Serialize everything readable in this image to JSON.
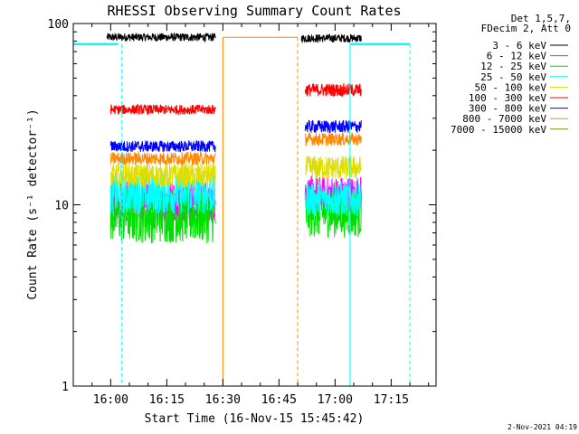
{
  "chart_data": {
    "type": "line",
    "title": "RHESSI Observing Summary Count Rates",
    "xlabel": "Start Time (16-Nov-15 15:45:42)",
    "ylabel": "Count Rate (s⁻¹ detector⁻¹)",
    "y_scale": "log",
    "ylim": [
      1,
      100
    ],
    "y_ticks": [
      1,
      10,
      100
    ],
    "y_tick_labels": [
      "1",
      "10",
      "100"
    ],
    "xlim": [
      "15:50",
      "17:27"
    ],
    "x_ticks": [
      "16:00",
      "16:15",
      "16:30",
      "16:45",
      "17:00",
      "17:15"
    ],
    "grid": false,
    "legend_position": "top-right",
    "legend_header": [
      "Det 1,5,7,",
      "FDecim 2, Att 0"
    ],
    "series": [
      {
        "name": "3 - 6 keV",
        "color": "#000000",
        "segments": [
          {
            "t0": "15:59",
            "t1": "16:28",
            "level": 84,
            "jitter": 0.05
          },
          {
            "t0": "16:51",
            "t1": "17:07",
            "level": 83,
            "jitter": 0.05
          }
        ]
      },
      {
        "name": "6 - 12 keV",
        "color": "#ff00ff",
        "segments": [
          {
            "t0": "16:00",
            "t1": "16:28",
            "level": 10.5,
            "jitter": 0.25
          },
          {
            "t0": "16:52",
            "t1": "17:07",
            "level": 11.5,
            "jitter": 0.22
          }
        ]
      },
      {
        "name": "12 - 25 keV",
        "color": "#00dd00",
        "segments": [
          {
            "t0": "16:00",
            "t1": "16:28",
            "level": 8.8,
            "jitter": 0.35
          },
          {
            "t0": "16:52",
            "t1": "17:07",
            "level": 9.0,
            "jitter": 0.3
          }
        ]
      },
      {
        "name": "25 - 50 keV",
        "color": "#00ffff",
        "segments": [
          {
            "t0": "16:00",
            "t1": "16:28",
            "level": 11.5,
            "jitter": 0.25
          },
          {
            "t0": "16:52",
            "t1": "17:07",
            "level": 10.8,
            "jitter": 0.22
          }
        ]
      },
      {
        "name": "50 - 100 keV",
        "color": "#dddd00",
        "segments": [
          {
            "t0": "16:00",
            "t1": "16:28",
            "level": 14.5,
            "jitter": 0.15
          },
          {
            "t0": "16:52",
            "t1": "17:07",
            "level": 16,
            "jitter": 0.15
          }
        ]
      },
      {
        "name": "100 - 300 keV",
        "color": "#ff0000",
        "segments": [
          {
            "t0": "16:00",
            "t1": "16:28",
            "level": 33.5,
            "jitter": 0.06
          },
          {
            "t0": "16:52",
            "t1": "17:07",
            "level": 43,
            "jitter": 0.08
          }
        ]
      },
      {
        "name": "300 - 800 keV",
        "color": "#0000ff",
        "segments": [
          {
            "t0": "16:00",
            "t1": "16:28",
            "level": 21,
            "jitter": 0.07
          },
          {
            "t0": "16:52",
            "t1": "17:07",
            "level": 27,
            "jitter": 0.08
          }
        ]
      },
      {
        "name": "800 - 7000 keV",
        "color": "#ff8800",
        "segments": [
          {
            "t0": "16:00",
            "t1": "16:28",
            "level": 18,
            "jitter": 0.08
          },
          {
            "t0": "16:30",
            "t1": "16:50",
            "level": 84,
            "jitter": 0.0
          },
          {
            "t0": "16:52",
            "t1": "17:07",
            "level": 23,
            "jitter": 0.08
          }
        ]
      },
      {
        "name": "7000 - 15000 keV",
        "color": "#888800",
        "segments": []
      }
    ],
    "flag_lines": [
      {
        "color": "#00ffff",
        "style": "solid",
        "points": [
          [
            "15:50",
            77
          ],
          [
            "16:02",
            77
          ]
        ]
      },
      {
        "color": "#00ffff",
        "style": "solid",
        "points": [
          [
            "17:04",
            77
          ],
          [
            "17:20",
            77
          ]
        ]
      },
      {
        "color": "#00ffff",
        "style": "solid",
        "points": [
          [
            "15:50",
            77
          ],
          [
            "15:50",
            1
          ]
        ]
      },
      {
        "color": "#00ffff",
        "style": "solid",
        "points": [
          [
            "17:04",
            77
          ],
          [
            "17:04",
            1
          ]
        ]
      },
      {
        "color": "#00ffff",
        "style": "dashed",
        "points": [
          [
            "16:03",
            77
          ],
          [
            "16:03",
            1
          ]
        ]
      },
      {
        "color": "#00ffff",
        "style": "dashed",
        "points": [
          [
            "17:20",
            77
          ],
          [
            "17:20",
            1
          ]
        ]
      },
      {
        "color": "#ff8800",
        "style": "solid",
        "points": [
          [
            "16:30",
            1
          ],
          [
            "16:30",
            84
          ]
        ]
      },
      {
        "color": "#ff8800",
        "style": "dashed",
        "points": [
          [
            "16:50",
            84
          ],
          [
            "16:50",
            1
          ]
        ]
      }
    ],
    "timestamp": "2-Nov-2021 04:19"
  }
}
